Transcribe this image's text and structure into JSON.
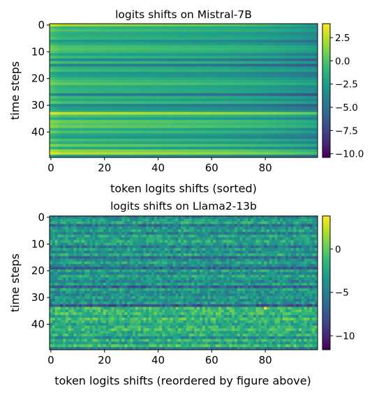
{
  "colormap": "viridis",
  "colormap_stops": [
    "#440154",
    "#482878",
    "#3e4a89",
    "#31688e",
    "#26828e",
    "#1f9e89",
    "#35b779",
    "#6ece58",
    "#b5de2b",
    "#fde725"
  ],
  "chart_data": [
    {
      "type": "heatmap",
      "title": "logits shifts on Mistral-7B",
      "xlabel": "token logits shifts (sorted)",
      "ylabel": "time steps",
      "x_range": [
        0,
        99
      ],
      "y_range": [
        0,
        49
      ],
      "x_ticks": [
        "0",
        "20",
        "40",
        "60",
        "80"
      ],
      "x_tick_values": [
        0,
        20,
        40,
        60,
        80
      ],
      "y_ticks": [
        "0",
        "10",
        "20",
        "30",
        "40"
      ],
      "y_tick_values": [
        0,
        10,
        20,
        30,
        40
      ],
      "y_inverted": true,
      "colorbar": {
        "range": [
          -10.4,
          4.0
        ],
        "ticks": [
          "2.5",
          "0.0",
          "−2.5",
          "−5.0",
          "−7.5",
          "−10.0"
        ],
        "tick_values": [
          2.5,
          0.0,
          -2.5,
          -5.0,
          -7.5,
          -10.0
        ]
      },
      "columns_sorted": true,
      "row_levels": [
        0.0,
        -2.0,
        -1.2,
        -2.5,
        -2.3,
        -1.8,
        -3.8,
        -2.6,
        -1.2,
        -0.9,
        -1.5,
        -3.2,
        -1.8,
        -4.6,
        -1.6,
        -5.2,
        -2.3,
        -1.6,
        -3.6,
        -3.3,
        -2.1,
        -1.4,
        -0.7,
        -2.4,
        -2.1,
        -2.0,
        -5.4,
        -1.8,
        -2.7,
        -1.3,
        -4.8,
        -3.6,
        -2.9,
        1.6,
        -1.2,
        -2.8,
        -0.4,
        -0.8,
        -0.3,
        -2.6,
        -1.1,
        -2.9,
        -3.6,
        -1.3,
        -2.6,
        -0.4,
        -2.9,
        0.3,
        1.2,
        -3.9
      ],
      "row_ranges": [
        5.2,
        2.5,
        2.4,
        2.4,
        2.3,
        2.4,
        2.5,
        2.4,
        2.3,
        2.3,
        2.4,
        2.5,
        2.4,
        2.6,
        2.4,
        2.6,
        2.4,
        2.3,
        2.5,
        2.5,
        2.4,
        2.4,
        2.3,
        2.4,
        2.4,
        2.4,
        2.6,
        2.4,
        2.5,
        2.4,
        2.6,
        2.5,
        2.5,
        2.5,
        2.4,
        2.5,
        2.3,
        2.3,
        2.3,
        2.5,
        2.4,
        2.5,
        2.6,
        2.4,
        2.5,
        2.4,
        2.6,
        2.8,
        3.0,
        2.6
      ]
    },
    {
      "type": "heatmap",
      "title": "logits shifts on Llama2-13b",
      "xlabel": "token logits shifts (reordered by figure above)",
      "ylabel": "time steps",
      "x_range": [
        0,
        99
      ],
      "y_range": [
        0,
        49
      ],
      "x_ticks": [
        "0",
        "20",
        "40",
        "60",
        "80"
      ],
      "x_tick_values": [
        0,
        20,
        40,
        60,
        80
      ],
      "y_ticks": [
        "0",
        "10",
        "20",
        "30",
        "40"
      ],
      "y_tick_values": [
        0,
        10,
        20,
        30,
        40
      ],
      "y_inverted": true,
      "colorbar": {
        "range": [
          -11.6,
          3.8
        ],
        "ticks": [
          "0",
          "−5",
          "−10"
        ],
        "tick_values": [
          0,
          -5,
          -10
        ]
      },
      "columns_sorted": false,
      "row_levels": [
        -4.6,
        -3.1,
        -2.3,
        -5.8,
        -3.6,
        -2.7,
        -4.9,
        -2.6,
        -3.5,
        -2.1,
        -3.0,
        -5.5,
        -2.9,
        -4.3,
        -2.4,
        -5.8,
        -3.9,
        -2.5,
        -4.1,
        -6.7,
        -2.7,
        -4.4,
        -2.5,
        -3.6,
        -4.6,
        -3.0,
        -6.9,
        -2.8,
        -3.8,
        -4.2,
        -3.1,
        -4.2,
        -3.3,
        -7.4,
        -1.0,
        -1.3,
        -1.1,
        -2.6,
        -0.8,
        -1.8,
        -2.7,
        -1.5,
        -1.1,
        -2.4,
        -1.7,
        -4.2,
        -1.3,
        -3.2,
        -0.9,
        -4.4
      ],
      "row_noise": 1.8,
      "bright_outlier": {
        "x": 80,
        "y": 34,
        "value": 3.8
      }
    }
  ]
}
